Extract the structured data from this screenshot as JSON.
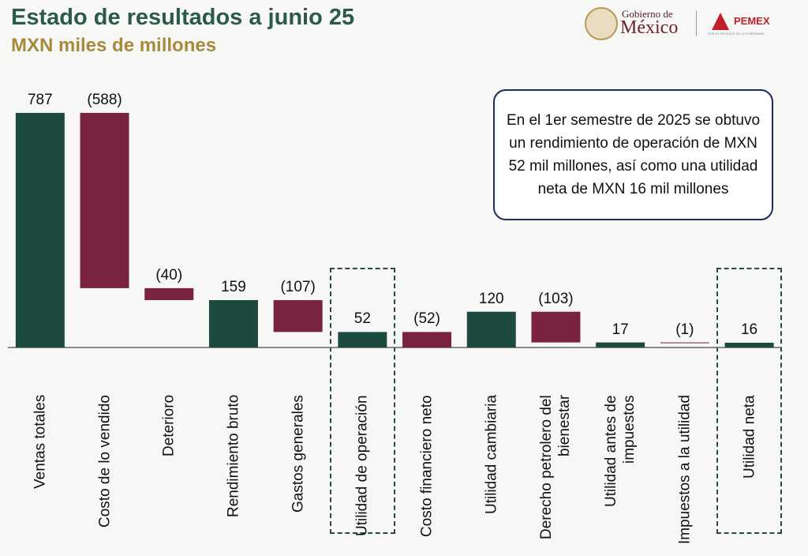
{
  "chart_data": {
    "type": "waterfall",
    "title": "Estado de resultados a junio 25",
    "subtitle": "MXN miles de millones",
    "categories": [
      "Ventas totales",
      "Costo de lo vendido",
      "Deterioro",
      "Rendimiento bruto",
      "Gastos generales",
      "Utilidad de operación",
      "Costo financiero neto",
      "Utilidad cambiaria",
      "Derecho petrolero del bienestar",
      "Utilidad antes de impuestos",
      "Impuestos a la utilidad",
      "Utilidad neta"
    ],
    "values": [
      787,
      -588,
      -40,
      159,
      -107,
      52,
      -52,
      120,
      -103,
      17,
      -1,
      16
    ],
    "value_labels": [
      "787",
      "(588)",
      "(40)",
      "159",
      "(107)",
      "52",
      "(52)",
      "120",
      "(103)",
      "17",
      "(1)",
      "16"
    ],
    "measure": [
      "total",
      "relative",
      "relative",
      "total",
      "relative",
      "total",
      "relative",
      "relative",
      "relative",
      "total",
      "relative",
      "total"
    ],
    "total_color": "#1d4a3e",
    "increase_color": "#1d4a3e",
    "decrease_color": "#7a2241",
    "ylim": [
      0,
      800
    ],
    "annotation": "En el 1er semestre de 2025 se obtuvo un rendimiento de operación de MXN 52 mil millones, así como una utilidad neta de MXN 16 mil millones"
  },
  "logo": {
    "gov_line1": "Gobierno de",
    "gov_line2": "México",
    "pemex": "PEMEX",
    "pemex_tagline": "POR EL RESCATE DE LA SOBERANÍA"
  }
}
